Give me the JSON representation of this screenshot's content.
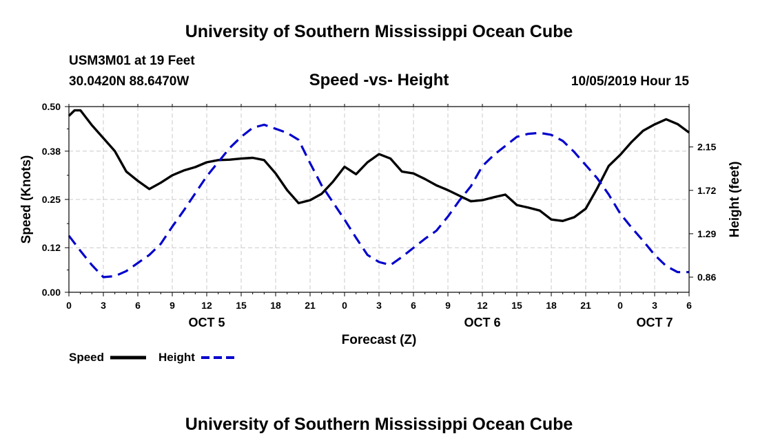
{
  "header": {
    "title_top": "University of Southern Mississippi Ocean Cube",
    "station": "USM3M01 at 19 Feet",
    "coords": "30.0420N 88.6470W",
    "chart_title": "Speed -vs- Height",
    "date": "10/05/2019 Hour 15",
    "title_bottom": "University of Southern Mississippi Ocean Cube"
  },
  "legend": {
    "speed_label": "Speed",
    "height_label": "Height"
  },
  "colors": {
    "speed": "#000000",
    "height": "#0000cc",
    "grid": "#c8c8c8"
  },
  "chart_data": {
    "type": "line",
    "title": "Speed -vs- Height",
    "xlabel": "Forecast (Z)",
    "ylabel": "Speed (Knots)",
    "y2label": "Height (feet)",
    "grid": true,
    "x_range": [
      0,
      54
    ],
    "x_ticks": [
      0,
      3,
      6,
      9,
      12,
      15,
      18,
      21,
      24,
      27,
      30,
      33,
      36,
      39,
      42,
      45,
      48,
      51,
      54
    ],
    "x_tick_labels": [
      "0",
      "3",
      "6",
      "9",
      "12",
      "15",
      "18",
      "21",
      "0",
      "3",
      "6",
      "9",
      "12",
      "15",
      "18",
      "21",
      "0",
      "3",
      "6"
    ],
    "day_labels": [
      {
        "x": 12,
        "label": "OCT 5"
      },
      {
        "x": 36,
        "label": "OCT 6"
      },
      {
        "x": 51,
        "label": "OCT 7"
      }
    ],
    "ylim": [
      0,
      0.5
    ],
    "y_ticks": [
      0.0,
      0.12,
      0.25,
      0.38,
      0.5
    ],
    "y_tick_labels": [
      "0.00",
      "0.12",
      "0.25",
      "0.38",
      "0.50"
    ],
    "y2lim": [
      0.71,
      2.55
    ],
    "y2_ticks": [
      0.86,
      1.29,
      1.72,
      2.15
    ],
    "y2_tick_labels": [
      "0.86",
      "1.29",
      "1.72",
      "2.15"
    ],
    "series": [
      {
        "name": "Speed",
        "axis": "left",
        "style": "solid",
        "x": [
          0,
          0.5,
          1,
          2,
          3,
          4,
          5,
          6,
          7,
          8,
          9,
          10,
          11,
          12,
          13,
          14,
          15,
          16,
          17,
          18,
          19,
          20,
          21,
          22,
          23,
          24,
          25,
          26,
          27,
          28,
          29,
          30,
          31,
          32,
          33,
          34,
          35,
          36,
          37,
          38,
          39,
          40,
          41,
          42,
          43,
          44,
          45,
          46,
          47,
          48,
          49,
          50,
          51,
          52,
          53,
          54
        ],
        "values": [
          0.475,
          0.49,
          0.49,
          0.45,
          0.415,
          0.38,
          0.325,
          0.3,
          0.278,
          0.295,
          0.315,
          0.328,
          0.337,
          0.35,
          0.356,
          0.357,
          0.36,
          0.362,
          0.356,
          0.32,
          0.275,
          0.24,
          0.248,
          0.265,
          0.298,
          0.338,
          0.318,
          0.35,
          0.372,
          0.36,
          0.325,
          0.32,
          0.305,
          0.288,
          0.275,
          0.26,
          0.245,
          0.248,
          0.256,
          0.263,
          0.235,
          0.228,
          0.22,
          0.196,
          0.192,
          0.202,
          0.225,
          0.28,
          0.34,
          0.37,
          0.405,
          0.435,
          0.452,
          0.466,
          0.453,
          0.43
        ]
      },
      {
        "name": "Height",
        "axis": "right",
        "style": "dashed",
        "x": [
          0,
          1,
          2,
          3,
          4,
          5,
          6,
          7,
          8,
          9,
          10,
          11,
          12,
          13,
          14,
          15,
          16,
          17,
          18,
          19,
          20,
          21,
          22,
          23,
          24,
          25,
          26,
          27,
          28,
          29,
          30,
          31,
          32,
          33,
          34,
          35,
          36,
          37,
          38,
          39,
          40,
          41,
          42,
          43,
          44,
          45,
          46,
          47,
          48,
          49,
          50,
          51,
          52,
          53,
          54
        ],
        "values": [
          1.27,
          1.12,
          0.98,
          0.86,
          0.87,
          0.92,
          1.0,
          1.08,
          1.19,
          1.36,
          1.52,
          1.69,
          1.86,
          2.0,
          2.14,
          2.25,
          2.34,
          2.37,
          2.33,
          2.29,
          2.22,
          1.99,
          1.77,
          1.6,
          1.43,
          1.25,
          1.08,
          1.01,
          0.98,
          1.06,
          1.15,
          1.24,
          1.32,
          1.46,
          1.62,
          1.76,
          1.96,
          2.07,
          2.16,
          2.25,
          2.28,
          2.29,
          2.27,
          2.21,
          2.1,
          1.97,
          1.84,
          1.68,
          1.49,
          1.35,
          1.22,
          1.08,
          0.97,
          0.91,
          0.91
        ]
      }
    ]
  }
}
